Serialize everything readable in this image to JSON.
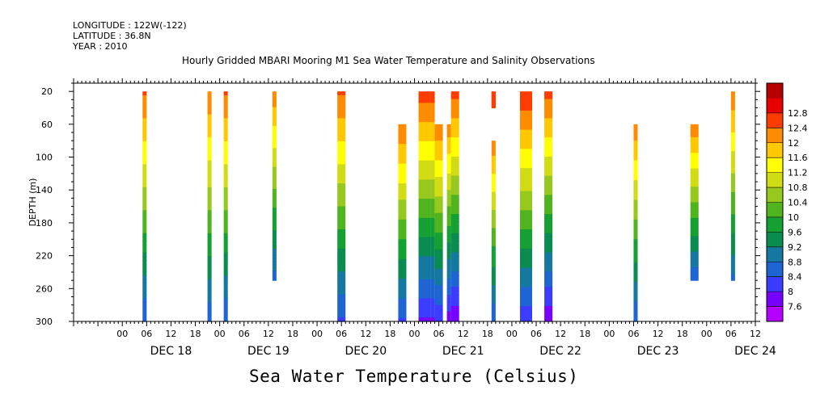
{
  "header": {
    "longitude": "LONGITUDE : 122W(-122)",
    "latitude": "LATITUDE : 36.8N",
    "year": "YEAR : 2010",
    "title": "Hourly Gridded MBARI Mooring M1 Sea Water Temperature and Salinity Observations",
    "variable_label": "Sea Water Temperature (Celsius)"
  },
  "chart_data": {
    "type": "heatmap",
    "title": "Hourly Gridded MBARI Mooring M1 Sea Water Temperature and Salinity Observations",
    "xlabel": "",
    "ylabel": "DEPTH (m)",
    "colorbar_label": "Sea Water Temperature (Celsius)",
    "y_ticks": [
      20,
      60,
      100,
      140,
      180,
      220,
      260,
      300
    ],
    "y_range": [
      300,
      10
    ],
    "x_hour_tick_labels": [
      "00",
      "06",
      "12",
      "18"
    ],
    "x_day_labels": [
      "DEC 18",
      "DEC 19",
      "DEC 20",
      "DEC 21",
      "DEC 22",
      "DEC 23",
      "DEC 24"
    ],
    "x_range_hours": [
      -12,
      156
    ],
    "colorbar_levels": [
      7.6,
      8,
      8.4,
      8.8,
      9.2,
      9.6,
      10,
      10.4,
      10.8,
      11.2,
      11.6,
      12,
      12.4,
      12.8
    ],
    "colors": [
      "#b400ff",
      "#7800ff",
      "#3c3cff",
      "#1e64d2",
      "#1478a0",
      "#0a8c50",
      "#14a032",
      "#50b41e",
      "#96c81e",
      "#d2dc14",
      "#ffff00",
      "#ffc800",
      "#ff8c00",
      "#ff3c00",
      "#e60000",
      "#b40000"
    ],
    "columns": [
      {
        "hours": [
          5,
          6
        ],
        "top_depth": 20,
        "bottom_depth": 300,
        "top_temp": 12.5,
        "bottom_temp": 8.4
      },
      {
        "hours": [
          21,
          22
        ],
        "top_depth": 20,
        "bottom_depth": 300,
        "top_temp": 12.4,
        "bottom_temp": 8.5
      },
      {
        "hours": [
          25,
          26
        ],
        "top_depth": 20,
        "bottom_depth": 300,
        "top_temp": 12.5,
        "bottom_temp": 8.4
      },
      {
        "hours": [
          37,
          38
        ],
        "top_depth": 20,
        "bottom_depth": 250,
        "top_temp": 12.3,
        "bottom_temp": 8.6
      },
      {
        "hours": [
          53,
          55
        ],
        "top_depth": 20,
        "bottom_depth": 300,
        "top_temp": 12.5,
        "bottom_temp": 8.3
      },
      {
        "hours": [
          68,
          70
        ],
        "top_depth": 60,
        "bottom_depth": 300,
        "top_temp": 12.4,
        "bottom_temp": 8.3
      },
      {
        "hours": [
          73,
          76
        ],
        "top_depth": 20,
        "bottom_depth": 300,
        "top_temp": 12.6,
        "bottom_temp": 7.9
      },
      {
        "hours": [
          76,
          77
        ],
        "top_depth": 20,
        "bottom_depth": 300,
        "top_temp": 12.6,
        "bottom_temp": 7.9
      },
      {
        "hours": [
          77,
          79
        ],
        "top_depth": 60,
        "bottom_depth": 300,
        "top_temp": 12.4,
        "bottom_temp": 8.0
      },
      {
        "hours": [
          80,
          81
        ],
        "top_depth": 60,
        "bottom_depth": 300,
        "top_temp": 12.3,
        "bottom_temp": 7.8
      },
      {
        "hours": [
          81,
          83
        ],
        "top_depth": 20,
        "bottom_depth": 300,
        "top_temp": 12.6,
        "bottom_temp": 7.7
      },
      {
        "hours": [
          91,
          92
        ],
        "top_depth": 20,
        "bottom_depth": 40,
        "top_temp": 12.5,
        "bottom_temp": 12.4
      },
      {
        "hours": [
          91,
          92
        ],
        "top_depth": 80,
        "bottom_depth": 300,
        "top_temp": 12.3,
        "bottom_temp": 8.4
      },
      {
        "hours": [
          98,
          101
        ],
        "top_depth": 20,
        "bottom_depth": 300,
        "top_temp": 12.8,
        "bottom_temp": 8.1
      },
      {
        "hours": [
          104,
          106
        ],
        "top_depth": 20,
        "bottom_depth": 300,
        "top_temp": 12.6,
        "bottom_temp": 7.7
      },
      {
        "hours": [
          126,
          127
        ],
        "top_depth": 60,
        "bottom_depth": 300,
        "top_temp": 12.3,
        "bottom_temp": 8.4
      },
      {
        "hours": [
          140,
          142
        ],
        "top_depth": 60,
        "bottom_depth": 250,
        "top_temp": 12.3,
        "bottom_temp": 8.5
      },
      {
        "hours": [
          150,
          151
        ],
        "top_depth": 20,
        "bottom_depth": 250,
        "top_temp": 12.4,
        "bottom_temp": 8.7
      }
    ]
  }
}
